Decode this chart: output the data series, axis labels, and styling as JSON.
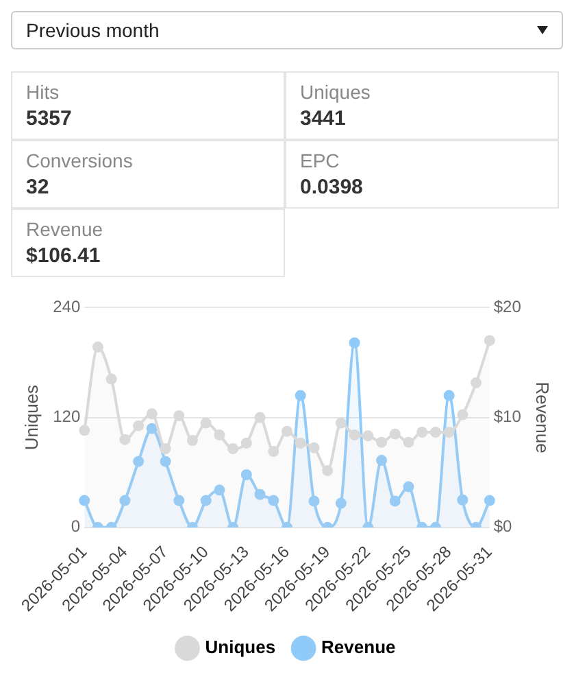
{
  "chart_data": {
    "type": "area",
    "annotations": [
      "Previous month",
      "Hits",
      "5357",
      "Uniques",
      "3441",
      "Conversions",
      "32",
      "EPC",
      "0.0398",
      "Revenue",
      "$106.41"
    ],
    "categories": [
      "2026-05-01",
      null,
      null,
      "2026-05-04",
      null,
      null,
      "2026-05-07",
      null,
      null,
      "2026-05-10",
      null,
      null,
      "2026-05-13",
      null,
      null,
      "2026-05-16",
      null,
      null,
      "2026-05-19",
      null,
      null,
      "2026-05-22",
      null,
      null,
      "2026-05-25",
      null,
      null,
      "2026-05-28",
      null,
      null,
      "2026-05-31"
    ],
    "ylabel": "Uniques",
    "y2label": "Revenue",
    "series": [
      {
        "name": "Uniques",
        "color": "#d9d9d9",
        "values": [
          106,
          197,
          162,
          96,
          111,
          124,
          86,
          122,
          95,
          114,
          101,
          86,
          92,
          120,
          83,
          105,
          92,
          87,
          62,
          114,
          101,
          100,
          93,
          102,
          93,
          104,
          104,
          104,
          123,
          158,
          204
        ]
      },
      {
        "name": "Revenue",
        "color": "#90caf9",
        "axis": "y2",
        "values": [
          2.45,
          0,
          0,
          2.45,
          6.0,
          9.0,
          6.0,
          2.45,
          0,
          2.45,
          3.4,
          0,
          4.8,
          3.0,
          2.45,
          0,
          12.0,
          2.4,
          0,
          2.2,
          16.8,
          0,
          6.1,
          2.4,
          3.7,
          0,
          0,
          12.0,
          2.5,
          0,
          2.45
        ]
      }
    ],
    "ylim": [
      0,
      240
    ],
    "yticks": [
      0,
      120,
      240
    ],
    "y2lim": [
      0,
      20
    ],
    "y2ticks": [
      {
        "value": 0,
        "label": "$0"
      },
      {
        "value": 10,
        "label": "$10"
      },
      {
        "value": 20,
        "label": "$20"
      }
    ],
    "grid": "y",
    "legend": "bottom",
    "marker": "circle"
  }
}
